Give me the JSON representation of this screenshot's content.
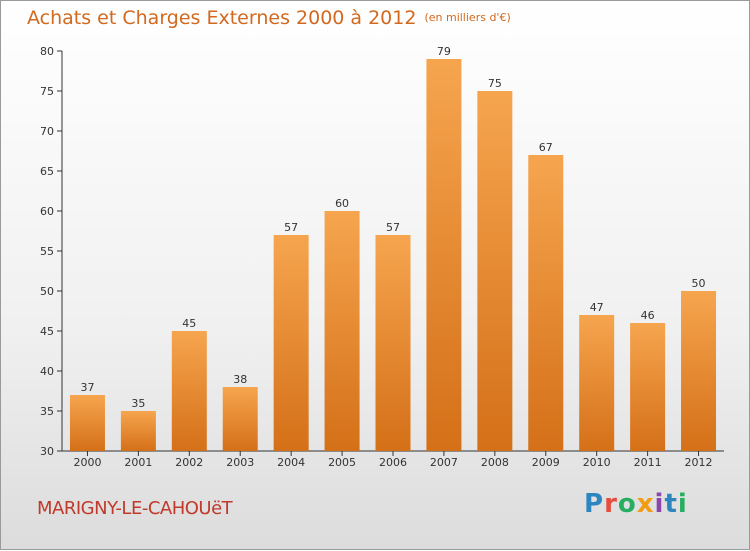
{
  "title": "Achats et Charges Externes 2000 à 2012",
  "subtitle": "(en milliers d'€)",
  "commune": "MARIGNY-LE-CAHOUëT",
  "logo": {
    "letters": [
      "P",
      "r",
      "o",
      "x",
      "i",
      "t",
      "i"
    ],
    "colors": [
      "#2e86c1",
      "#e74c3c",
      "#27ae60",
      "#f39c12",
      "#8e44ad",
      "#2e86c1",
      "#27ae60"
    ]
  },
  "colors": {
    "bar_top": "#f6a54f",
    "bar_bottom": "#d47018",
    "title": "#d2691e",
    "commune": "#c0392b"
  },
  "chart_data": {
    "type": "bar",
    "title": "Achats et Charges Externes 2000 à 2012",
    "subtitle": "(en milliers d'€)",
    "categories": [
      "2000",
      "2001",
      "2002",
      "2003",
      "2004",
      "2005",
      "2006",
      "2007",
      "2008",
      "2009",
      "2010",
      "2011",
      "2012"
    ],
    "values": [
      37,
      35,
      45,
      38,
      57,
      60,
      57,
      79,
      75,
      67,
      47,
      46,
      50
    ],
    "ylim": [
      30,
      80
    ],
    "yticks": [
      30,
      35,
      40,
      45,
      50,
      55,
      60,
      65,
      70,
      75,
      80
    ],
    "grid": false,
    "data_labels": true
  }
}
